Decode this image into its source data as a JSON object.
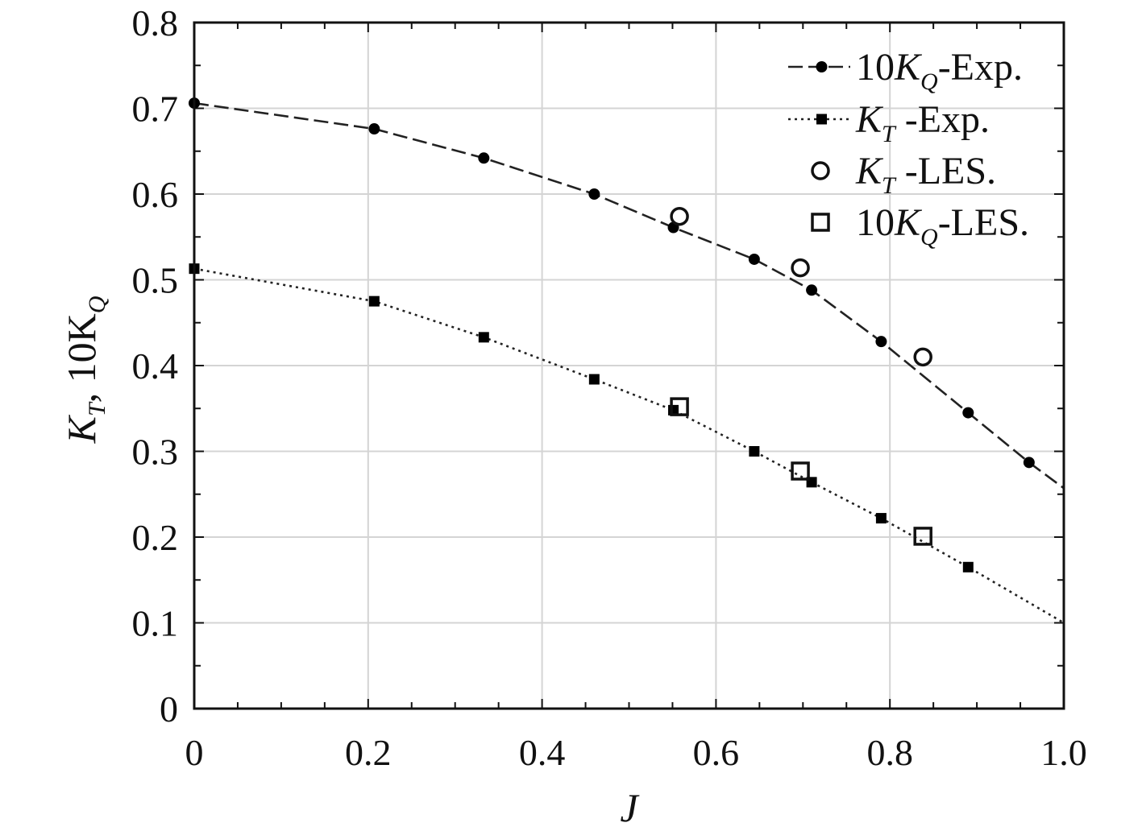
{
  "chart_data": {
    "type": "line",
    "xlabel": "J",
    "ylabel": {
      "part1": "K",
      "sub1": "T",
      "part2": ", 10K",
      "sub2": "Q"
    },
    "xlim": [
      0,
      1.0
    ],
    "ylim": [
      0,
      0.8
    ],
    "x_ticks": [
      "0",
      "0.2",
      "0.4",
      "0.6",
      "0.8",
      "1.0"
    ],
    "y_ticks": [
      "0",
      "0.1",
      "0.2",
      "0.3",
      "0.4",
      "0.5",
      "0.6",
      "0.7",
      "0.8"
    ],
    "grid": true,
    "legend_position": "top-right",
    "series": [
      {
        "key": "kq_exp",
        "legend": {
          "pre": "10",
          "sym": "K",
          "sub": "Q",
          "post": "-Exp."
        },
        "style": "dashed-line-circle-marker",
        "curve_x": [
          0,
          0.207,
          0.333,
          0.46,
          0.551,
          0.644,
          0.71,
          0.79,
          0.89,
          0.96,
          1.0
        ],
        "curve_y": [
          0.706,
          0.676,
          0.642,
          0.6,
          0.561,
          0.524,
          0.488,
          0.428,
          0.345,
          0.287,
          0.257
        ],
        "x": [
          0,
          0.207,
          0.333,
          0.46,
          0.551,
          0.644,
          0.71,
          0.79,
          0.89,
          0.96
        ],
        "y": [
          0.706,
          0.676,
          0.642,
          0.6,
          0.561,
          0.524,
          0.488,
          0.428,
          0.345,
          0.287
        ]
      },
      {
        "key": "kt_exp",
        "legend": {
          "pre": "",
          "sym": "K",
          "sub": "T",
          "post": " -Exp."
        },
        "style": "dotted-line-square-marker",
        "curve_x": [
          0,
          0.207,
          0.333,
          0.46,
          0.551,
          0.644,
          0.71,
          0.79,
          0.89,
          1.0
        ],
        "curve_y": [
          0.513,
          0.475,
          0.433,
          0.384,
          0.348,
          0.3,
          0.264,
          0.222,
          0.165,
          0.1
        ],
        "x": [
          0,
          0.207,
          0.333,
          0.46,
          0.551,
          0.644,
          0.71,
          0.79,
          0.89
        ],
        "y": [
          0.513,
          0.475,
          0.433,
          0.384,
          0.348,
          0.3,
          0.264,
          0.222,
          0.165
        ]
      },
      {
        "key": "kt_les",
        "legend": {
          "pre": "",
          "sym": "K",
          "sub": "T",
          "post": " -LES."
        },
        "style": "open-circle",
        "x": [
          0.558,
          0.697,
          0.838
        ],
        "y": [
          0.574,
          0.514,
          0.41
        ]
      },
      {
        "key": "kq_les",
        "legend": {
          "pre": "10",
          "sym": "K",
          "sub": "Q",
          "post": "-LES."
        },
        "style": "open-square",
        "x": [
          0.558,
          0.697,
          0.838
        ],
        "y": [
          0.352,
          0.277,
          0.201
        ]
      }
    ]
  }
}
